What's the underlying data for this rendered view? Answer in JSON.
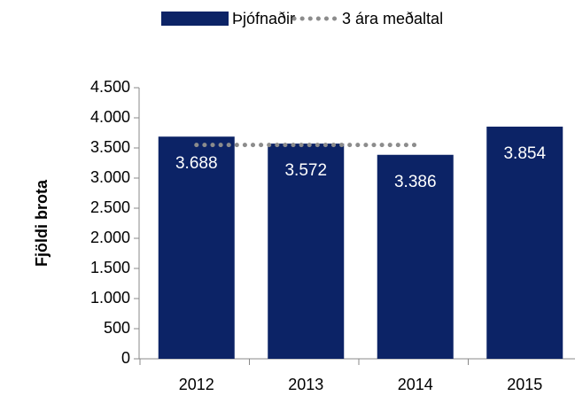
{
  "chart_data": {
    "type": "bar",
    "categories": [
      "2012",
      "2013",
      "2014",
      "2015"
    ],
    "series": [
      {
        "name": "Þjófnaðir",
        "color": "#0c2366",
        "values": [
          3688,
          3572,
          3386,
          3854
        ],
        "value_labels": [
          "3.688",
          "3.572",
          "3.386",
          "3.854"
        ]
      },
      {
        "name": "3 ára meðaltal",
        "color": "#8c8c8c",
        "type": "line",
        "values": [
          3549,
          3549,
          3549,
          null
        ]
      }
    ],
    "y_label": "Fjöldi brota",
    "ylim": [
      0,
      4500
    ],
    "yticks": [
      0,
      500,
      {
        "value": 1000,
        "label": "1.000"
      },
      {
        "value": 1500,
        "label": "1.500"
      },
      {
        "value": 2000,
        "label": "2.000"
      },
      {
        "value": 2500,
        "label": "2.500"
      },
      {
        "value": 3000,
        "label": "3.000"
      },
      {
        "value": 3500,
        "label": "3.500"
      },
      {
        "value": 4000,
        "label": "4.000"
      },
      {
        "value": 4500,
        "label": "4.500"
      }
    ],
    "legend": "top"
  }
}
